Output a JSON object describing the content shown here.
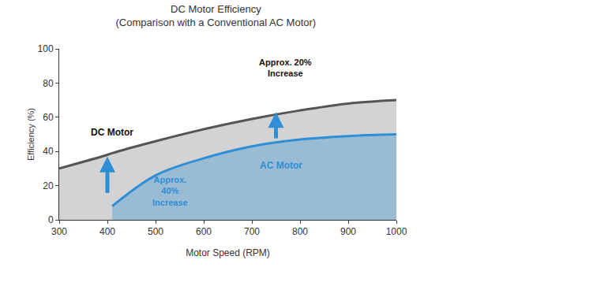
{
  "chart_data": {
    "type": "area",
    "title": "DC Motor Efficiency\n(Comparison with a Conventional AC Motor)",
    "x_label": "Motor Speed (RPM)",
    "y_label": "Efficiency (%)",
    "x": [
      300,
      400,
      410,
      500,
      600,
      700,
      800,
      900,
      1000
    ],
    "series": [
      {
        "name": "DC Motor",
        "color": "#555555",
        "values": [
          30,
          38,
          39,
          46,
          53,
          59,
          64,
          68,
          70
        ]
      },
      {
        "name": "AC Motor",
        "color": "#2f8fd6",
        "values": [
          null,
          null,
          8,
          26,
          36,
          43,
          47,
          49,
          50
        ]
      }
    ],
    "annotations": [
      "Approx. 20%\nIncrease",
      "Approx.\n40%\nIncrease"
    ],
    "xlim": [
      300,
      1000
    ],
    "ylim": [
      0,
      100
    ],
    "xticks": [
      300,
      400,
      500,
      600,
      700,
      800,
      900,
      1000
    ],
    "yticks": [
      0,
      20,
      40,
      60,
      80,
      100
    ],
    "grid": false
  }
}
